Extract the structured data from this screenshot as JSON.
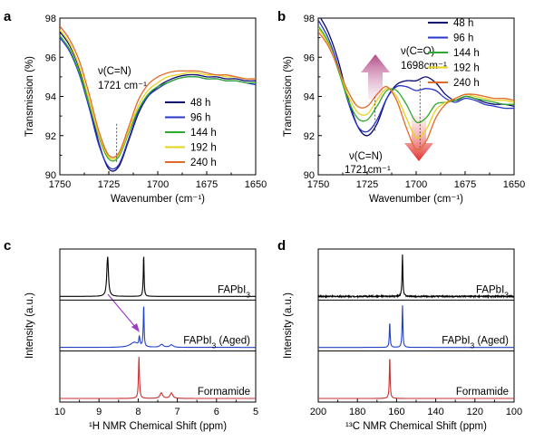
{
  "panels": {
    "a": {
      "label": "a"
    },
    "b": {
      "label": "b"
    },
    "c": {
      "label": "c"
    },
    "d": {
      "label": "d"
    }
  },
  "annotations": {
    "a_peak_l1": "ν(C=N)",
    "a_peak_l2": "1721 cm⁻¹",
    "b_co_l1": "ν(C=O)",
    "b_co_l2": "1698cm⁻¹",
    "b_cn_l1": "ν(C=N)",
    "b_cn_l2": "1721cm⁻¹"
  },
  "colors": {
    "48 h": "#0a0a6e",
    "96 h": "#2a36c8",
    "144 h": "#2fa82f",
    "192 h": "#e6d21e",
    "240 h": "#e06a2a",
    "FAPbI3": "#000000",
    "FAPbI3 (Aged)": "#2340c8",
    "Formamide": "#c83232"
  },
  "chart_data": [
    {
      "panel": "a",
      "type": "line",
      "xlabel": "Wavenumber (cm⁻¹)",
      "ylabel": "Transmission (%)",
      "xlim": [
        1750,
        1650
      ],
      "ylim": [
        90,
        98
      ],
      "xticks": [
        "1750",
        "1725",
        "1700",
        "1675",
        "1650"
      ],
      "yticks": [
        "90",
        "92",
        "94",
        "96",
        "98"
      ],
      "legend": "bottom-right",
      "series": [
        {
          "name": "48 h",
          "x": [
            1750,
            1745,
            1740,
            1735,
            1730,
            1725,
            1720,
            1715,
            1710,
            1705,
            1700,
            1695,
            1690,
            1685,
            1680,
            1675,
            1670,
            1665,
            1660,
            1655,
            1650
          ],
          "y": [
            97.3,
            96.6,
            95.4,
            93.6,
            91.6,
            90.3,
            90.4,
            91.7,
            93.1,
            94.0,
            94.5,
            94.8,
            95.0,
            95.1,
            95.1,
            95.0,
            95.0,
            94.9,
            94.9,
            94.8,
            94.8
          ]
        },
        {
          "name": "96 h",
          "x": [
            1750,
            1745,
            1740,
            1735,
            1730,
            1725,
            1720,
            1715,
            1710,
            1705,
            1700,
            1695,
            1690,
            1685,
            1680,
            1675,
            1670,
            1665,
            1660,
            1655,
            1650
          ],
          "y": [
            97.0,
            96.3,
            95.1,
            93.4,
            91.5,
            90.4,
            90.5,
            91.8,
            93.2,
            94.0,
            94.4,
            94.7,
            94.9,
            95.0,
            95.0,
            94.9,
            94.9,
            94.8,
            94.8,
            94.7,
            94.6
          ]
        },
        {
          "name": "144 h",
          "x": [
            1750,
            1745,
            1740,
            1735,
            1730,
            1725,
            1720,
            1715,
            1710,
            1705,
            1700,
            1695,
            1690,
            1685,
            1680,
            1675,
            1670,
            1665,
            1660,
            1655,
            1650
          ],
          "y": [
            97.1,
            96.4,
            95.2,
            93.6,
            91.9,
            90.8,
            90.9,
            92.1,
            93.3,
            94.1,
            94.5,
            94.7,
            94.9,
            95.0,
            95.0,
            94.9,
            94.9,
            94.8,
            94.8,
            94.7,
            94.7
          ]
        },
        {
          "name": "192 h",
          "x": [
            1750,
            1745,
            1740,
            1735,
            1730,
            1725,
            1720,
            1715,
            1710,
            1705,
            1700,
            1695,
            1690,
            1685,
            1680,
            1675,
            1670,
            1665,
            1660,
            1655,
            1650
          ],
          "y": [
            97.4,
            96.7,
            95.5,
            93.8,
            92.0,
            90.9,
            91.0,
            92.2,
            93.5,
            94.3,
            94.7,
            95.0,
            95.1,
            95.2,
            95.2,
            95.1,
            95.1,
            95.0,
            95.0,
            94.9,
            94.9
          ]
        },
        {
          "name": "240 h",
          "x": [
            1750,
            1745,
            1740,
            1735,
            1730,
            1725,
            1720,
            1715,
            1710,
            1705,
            1700,
            1695,
            1690,
            1685,
            1680,
            1675,
            1670,
            1665,
            1660,
            1655,
            1650
          ],
          "y": [
            97.6,
            96.9,
            95.8,
            94.1,
            92.2,
            91.0,
            91.1,
            92.4,
            93.8,
            94.6,
            95.0,
            95.2,
            95.3,
            95.3,
            95.3,
            95.2,
            95.1,
            95.1,
            95.0,
            94.9,
            94.9
          ]
        }
      ]
    },
    {
      "panel": "b",
      "type": "line",
      "xlabel": "Wavenumber (cm⁻¹)",
      "ylabel": "Transmission (%)",
      "xlim": [
        1750,
        1650
      ],
      "ylim": [
        90,
        98
      ],
      "xticks": [
        "1750",
        "1725",
        "1700",
        "1675",
        "1650"
      ],
      "yticks": [
        "90",
        "92",
        "94",
        "96",
        "98"
      ],
      "legend": "top-right",
      "series": [
        {
          "name": "48 h",
          "x": [
            1750,
            1745,
            1740,
            1735,
            1730,
            1725,
            1720,
            1715,
            1710,
            1705,
            1700,
            1695,
            1690,
            1685,
            1680,
            1675,
            1670,
            1665,
            1660,
            1655,
            1650
          ],
          "y": [
            98.2,
            97.3,
            95.9,
            94.0,
            92.5,
            92.0,
            92.6,
            93.9,
            94.6,
            94.8,
            94.8,
            95.0,
            94.7,
            94.1,
            93.8,
            94.0,
            93.9,
            93.7,
            93.6,
            93.6,
            93.5
          ]
        },
        {
          "name": "96 h",
          "x": [
            1750,
            1745,
            1740,
            1735,
            1730,
            1725,
            1720,
            1715,
            1710,
            1705,
            1700,
            1695,
            1690,
            1685,
            1680,
            1675,
            1670,
            1665,
            1660,
            1655,
            1650
          ],
          "y": [
            97.9,
            97.0,
            95.6,
            93.8,
            92.5,
            92.2,
            92.8,
            93.9,
            94.5,
            94.5,
            94.3,
            94.4,
            94.3,
            93.9,
            93.7,
            93.9,
            93.8,
            93.6,
            93.5,
            93.4,
            93.4
          ]
        },
        {
          "name": "144 h",
          "x": [
            1750,
            1745,
            1740,
            1735,
            1730,
            1725,
            1720,
            1715,
            1710,
            1705,
            1700,
            1695,
            1690,
            1685,
            1680,
            1675,
            1670,
            1665,
            1660,
            1655,
            1650
          ],
          "y": [
            97.6,
            96.8,
            95.4,
            93.9,
            92.9,
            92.8,
            93.5,
            94.3,
            94.3,
            93.6,
            92.7,
            92.9,
            93.6,
            93.7,
            93.8,
            94.0,
            93.9,
            93.8,
            93.7,
            93.6,
            93.6
          ]
        },
        {
          "name": "192 h",
          "x": [
            1750,
            1745,
            1740,
            1735,
            1730,
            1725,
            1720,
            1715,
            1710,
            1705,
            1700,
            1695,
            1690,
            1685,
            1680,
            1675,
            1670,
            1665,
            1660,
            1655,
            1650
          ],
          "y": [
            97.5,
            96.7,
            95.5,
            94.1,
            93.2,
            93.1,
            93.8,
            94.4,
            94.0,
            92.9,
            91.9,
            92.3,
            93.3,
            93.7,
            93.9,
            94.1,
            94.0,
            93.9,
            93.8,
            93.8,
            93.7
          ]
        },
        {
          "name": "240 h",
          "x": [
            1750,
            1745,
            1740,
            1735,
            1730,
            1725,
            1720,
            1715,
            1710,
            1705,
            1700,
            1695,
            1690,
            1685,
            1680,
            1675,
            1670,
            1665,
            1660,
            1655,
            1650
          ],
          "y": [
            97.3,
            96.6,
            95.5,
            94.3,
            93.5,
            93.5,
            94.1,
            94.5,
            93.8,
            92.4,
            91.3,
            91.7,
            92.9,
            93.6,
            93.9,
            94.1,
            94.1,
            94.0,
            93.9,
            93.9,
            93.8
          ]
        }
      ]
    },
    {
      "panel": "c",
      "type": "line",
      "xlabel": "¹H NMR Chemical Shift (ppm)",
      "ylabel": "Intensity (a.u.)",
      "xlim": [
        10,
        5
      ],
      "xticks": [
        "10",
        "9",
        "8",
        "7",
        "6",
        "5"
      ],
      "legend": "none",
      "series": [
        {
          "name": "FAPbI3",
          "label_main": "FAPbI",
          "label_sub": "3",
          "label_suffix": "",
          "peaks": [
            {
              "x": 8.78,
              "h": 0.95,
              "w": 0.025
            },
            {
              "x": 7.86,
              "h": 1.0,
              "w": 0.012
            }
          ]
        },
        {
          "name": "FAPbI3 (Aged)",
          "label_main": "FAPbI",
          "label_sub": "3",
          "label_suffix": " (Aged)",
          "peaks": [
            {
              "x": 8.1,
              "h": 0.12,
              "w": 0.12
            },
            {
              "x": 7.97,
              "h": 0.22,
              "w": 0.015
            },
            {
              "x": 7.86,
              "h": 1.0,
              "w": 0.012
            },
            {
              "x": 7.4,
              "h": 0.07,
              "w": 0.05
            },
            {
              "x": 7.15,
              "h": 0.06,
              "w": 0.05
            }
          ]
        },
        {
          "name": "Formamide",
          "label_main": "Formamide",
          "label_sub": "",
          "label_suffix": "",
          "peaks": [
            {
              "x": 7.98,
              "h": 1.0,
              "w": 0.015
            },
            {
              "x": 7.41,
              "h": 0.13,
              "w": 0.04
            },
            {
              "x": 7.15,
              "h": 0.13,
              "w": 0.04
            }
          ]
        }
      ]
    },
    {
      "panel": "d",
      "type": "line",
      "xlabel": "¹³C NMR Chemical Shift (ppm)",
      "ylabel": "Intensity (a.u.)",
      "xlim": [
        200,
        100
      ],
      "xticks": [
        "200",
        "180",
        "160",
        "140",
        "120",
        "100"
      ],
      "legend": "none",
      "series": [
        {
          "name": "FAPbI3",
          "label_main": "FAPbI",
          "label_sub": "3",
          "label_suffix": "",
          "peaks": [
            {
              "x": 157.0,
              "h": 1.0,
              "w": 0.25
            }
          ]
        },
        {
          "name": "FAPbI3 (Aged)",
          "label_main": "FAPbI",
          "label_sub": "3",
          "label_suffix": " (Aged)",
          "peaks": [
            {
              "x": 163.5,
              "h": 0.6,
              "w": 0.25
            },
            {
              "x": 157.0,
              "h": 1.0,
              "w": 0.25
            }
          ]
        },
        {
          "name": "Formamide",
          "label_main": "Formamide",
          "label_sub": "",
          "label_suffix": "",
          "peaks": [
            {
              "x": 163.5,
              "h": 1.0,
              "w": 0.25
            }
          ]
        }
      ]
    }
  ]
}
